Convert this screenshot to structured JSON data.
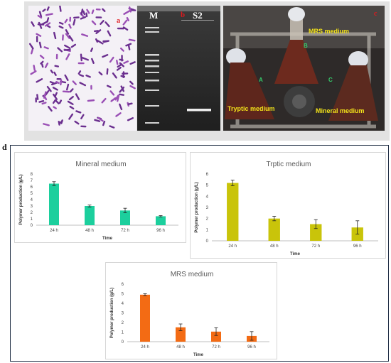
{
  "figure": {
    "panel_letters": {
      "a": "a",
      "b": "b",
      "c": "c",
      "d": "d"
    },
    "gel": {
      "lane_marker": "M",
      "lane_letter": "b",
      "lane_sample": "S2"
    },
    "flasks": {
      "mrs": "MRS medium",
      "tryptic": "Tryptic medium",
      "mineral": "Mineral medium",
      "flask_a": "A",
      "flask_b": "B",
      "flask_c": "C"
    }
  },
  "colors": {
    "mineral": "#1ccf9d",
    "tryptic": "#c9c40a",
    "mrs": "#f36b14",
    "panel_label_red": "#e0191e",
    "photo_label_yellow": "#f2e21a",
    "photo_label_green": "#36c86a"
  },
  "chart_data": [
    {
      "type": "bar",
      "title": "Mineral medium",
      "xlabel": "Time",
      "ylabel": "Polymer production (g/L)",
      "categories": [
        "24 h",
        "48 h",
        "72 h",
        "96 h"
      ],
      "series": [
        {
          "values": [
            6.5,
            3.0,
            2.3,
            1.4
          ],
          "errors": [
            0.3,
            0.15,
            0.35,
            0.1
          ]
        }
      ],
      "ylim": [
        0,
        8
      ],
      "yticks": [
        0,
        1,
        2,
        3,
        4,
        5,
        6,
        7,
        8
      ],
      "grid": false
    },
    {
      "type": "bar",
      "title": "Trptic medium",
      "xlabel": "Time",
      "ylabel": "Polymer production (g/L)",
      "categories": [
        "24 h",
        "48 h",
        "72 h",
        "96 h"
      ],
      "series": [
        {
          "values": [
            5.2,
            2.0,
            1.5,
            1.2
          ],
          "errors": [
            0.25,
            0.2,
            0.4,
            0.6
          ]
        }
      ],
      "ylim": [
        0,
        6
      ],
      "yticks": [
        0,
        1,
        2,
        3,
        4,
        5,
        6
      ],
      "grid": false
    },
    {
      "type": "bar",
      "title": "MRS medium",
      "xlabel": "Time",
      "ylabel": "Polymer production (g/L)",
      "categories": [
        "24 h",
        "48 h",
        "72 h",
        "96 h"
      ],
      "series": [
        {
          "values": [
            4.9,
            1.5,
            1.05,
            0.6
          ],
          "errors": [
            0.1,
            0.35,
            0.4,
            0.45
          ]
        }
      ],
      "ylim": [
        0,
        6
      ],
      "yticks": [
        0,
        1,
        2,
        3,
        4,
        5,
        6
      ],
      "grid": false
    }
  ]
}
